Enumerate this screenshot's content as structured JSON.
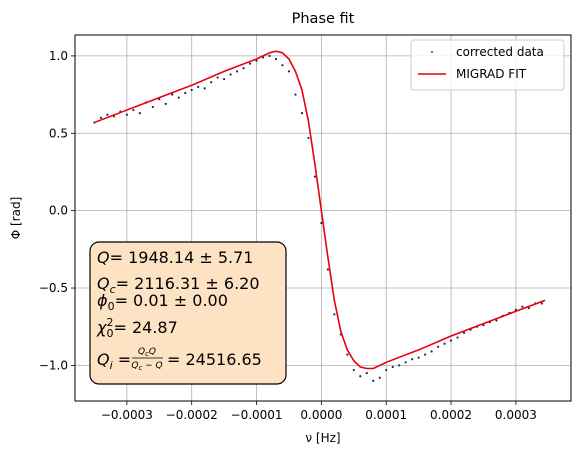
{
  "chart_data": {
    "type": "scatter",
    "title": "Phase fit",
    "xlabel": "ν [Hz]",
    "ylabel": "Φ [rad]",
    "xlim": [
      -0.00038,
      0.000385
    ],
    "ylim": [
      -1.23,
      1.135
    ],
    "grid": true,
    "legend_position": "top-right",
    "xticks": [
      -0.0003,
      -0.0002,
      -0.0001,
      0.0,
      0.0001,
      0.0002,
      0.0003
    ],
    "xtick_labels": [
      "−0.0003",
      "−0.0002",
      "−0.0001",
      "0.0000",
      "0.0001",
      "0.0002",
      "0.0003"
    ],
    "yticks": [
      1.0,
      0.5,
      0.0,
      -0.5,
      -1.0
    ],
    "ytick_labels": [
      "1.0",
      "0.5",
      "0.0",
      "−0.5",
      "−1.0"
    ],
    "series": [
      {
        "name": "corrected data",
        "kind": "scatter",
        "color": "#1f2a44",
        "x": [
          -0.00035,
          -0.00034,
          -0.00033,
          -0.00032,
          -0.00031,
          -0.0003,
          -0.00029,
          -0.00028,
          -0.00027,
          -0.00026,
          -0.00025,
          -0.00024,
          -0.00023,
          -0.00022,
          -0.00021,
          -0.0002,
          -0.00019,
          -0.00018,
          -0.00017,
          -0.00016,
          -0.00015,
          -0.00014,
          -0.00013,
          -0.00012,
          -0.00011,
          -0.0001,
          -9e-05,
          -8e-05,
          -7e-05,
          -6e-05,
          -5e-05,
          -4e-05,
          -3e-05,
          -2e-05,
          -1e-05,
          0.0,
          1e-05,
          2e-05,
          3e-05,
          4e-05,
          5e-05,
          6e-05,
          7e-05,
          8e-05,
          9e-05,
          0.0001,
          0.00011,
          0.00012,
          0.00013,
          0.00014,
          0.00015,
          0.00016,
          0.00017,
          0.00018,
          0.00019,
          0.0002,
          0.00021,
          0.00022,
          0.00023,
          0.00024,
          0.00025,
          0.00026,
          0.00027,
          0.00028,
          0.00029,
          0.0003,
          0.00031,
          0.00032,
          0.00033,
          0.00034
        ],
        "y": [
          0.57,
          0.6,
          0.62,
          0.61,
          0.64,
          0.62,
          0.65,
          0.63,
          0.7,
          0.67,
          0.72,
          0.69,
          0.75,
          0.73,
          0.76,
          0.78,
          0.8,
          0.79,
          0.83,
          0.86,
          0.85,
          0.88,
          0.9,
          0.92,
          0.95,
          0.97,
          0.99,
          1.0,
          0.98,
          0.94,
          0.9,
          0.75,
          0.63,
          0.47,
          0.22,
          -0.08,
          -0.38,
          -0.67,
          -0.8,
          -0.93,
          -1.03,
          -1.07,
          -1.05,
          -1.1,
          -1.08,
          -1.03,
          -1.01,
          -1.0,
          -0.98,
          -0.96,
          -0.95,
          -0.93,
          -0.91,
          -0.88,
          -0.86,
          -0.84,
          -0.82,
          -0.79,
          -0.77,
          -0.75,
          -0.74,
          -0.72,
          -0.71,
          -0.68,
          -0.66,
          -0.64,
          -0.62,
          -0.63,
          -0.6,
          -0.6
        ]
      },
      {
        "name": "MIGRAD FIT",
        "kind": "line",
        "color": "#e8000b",
        "x": [
          -0.00035,
          -0.0003,
          -0.00025,
          -0.0002,
          -0.00015,
          -0.0001,
          -9e-05,
          -8e-05,
          -7e-05,
          -6e-05,
          -5e-05,
          -4e-05,
          -3e-05,
          -2e-05,
          -1e-05,
          0.0,
          1e-05,
          2e-05,
          3e-05,
          4e-05,
          5e-05,
          6e-05,
          7e-05,
          8e-05,
          9e-05,
          0.0001,
          0.00015,
          0.0002,
          0.00025,
          0.0003,
          0.000345
        ],
        "y": [
          0.57,
          0.65,
          0.73,
          0.81,
          0.9,
          0.98,
          1.0,
          1.02,
          1.03,
          1.02,
          0.98,
          0.9,
          0.78,
          0.58,
          0.3,
          0.0,
          -0.3,
          -0.58,
          -0.78,
          -0.9,
          -0.97,
          -1.01,
          -1.02,
          -1.02,
          -1.0,
          -0.98,
          -0.9,
          -0.81,
          -0.73,
          -0.65,
          -0.58
        ]
      }
    ]
  },
  "annotation": {
    "lines": [
      "Q = 1948.14 ± 5.71",
      "Qc = 2116.31 ± 6.20",
      "ϕ0 = 0.01 ± 0.00",
      "χ02 = 24.87",
      "Qi = 24516.65"
    ],
    "q_value": "= 1948.14 ± 5.71",
    "qc_value": "= 2116.31 ± 6.20",
    "phi_value": "= 0.01 ± 0.00",
    "chi_value": "= 24.87",
    "qi_value": "= 24516.65",
    "box_color": "#fde3c4"
  }
}
